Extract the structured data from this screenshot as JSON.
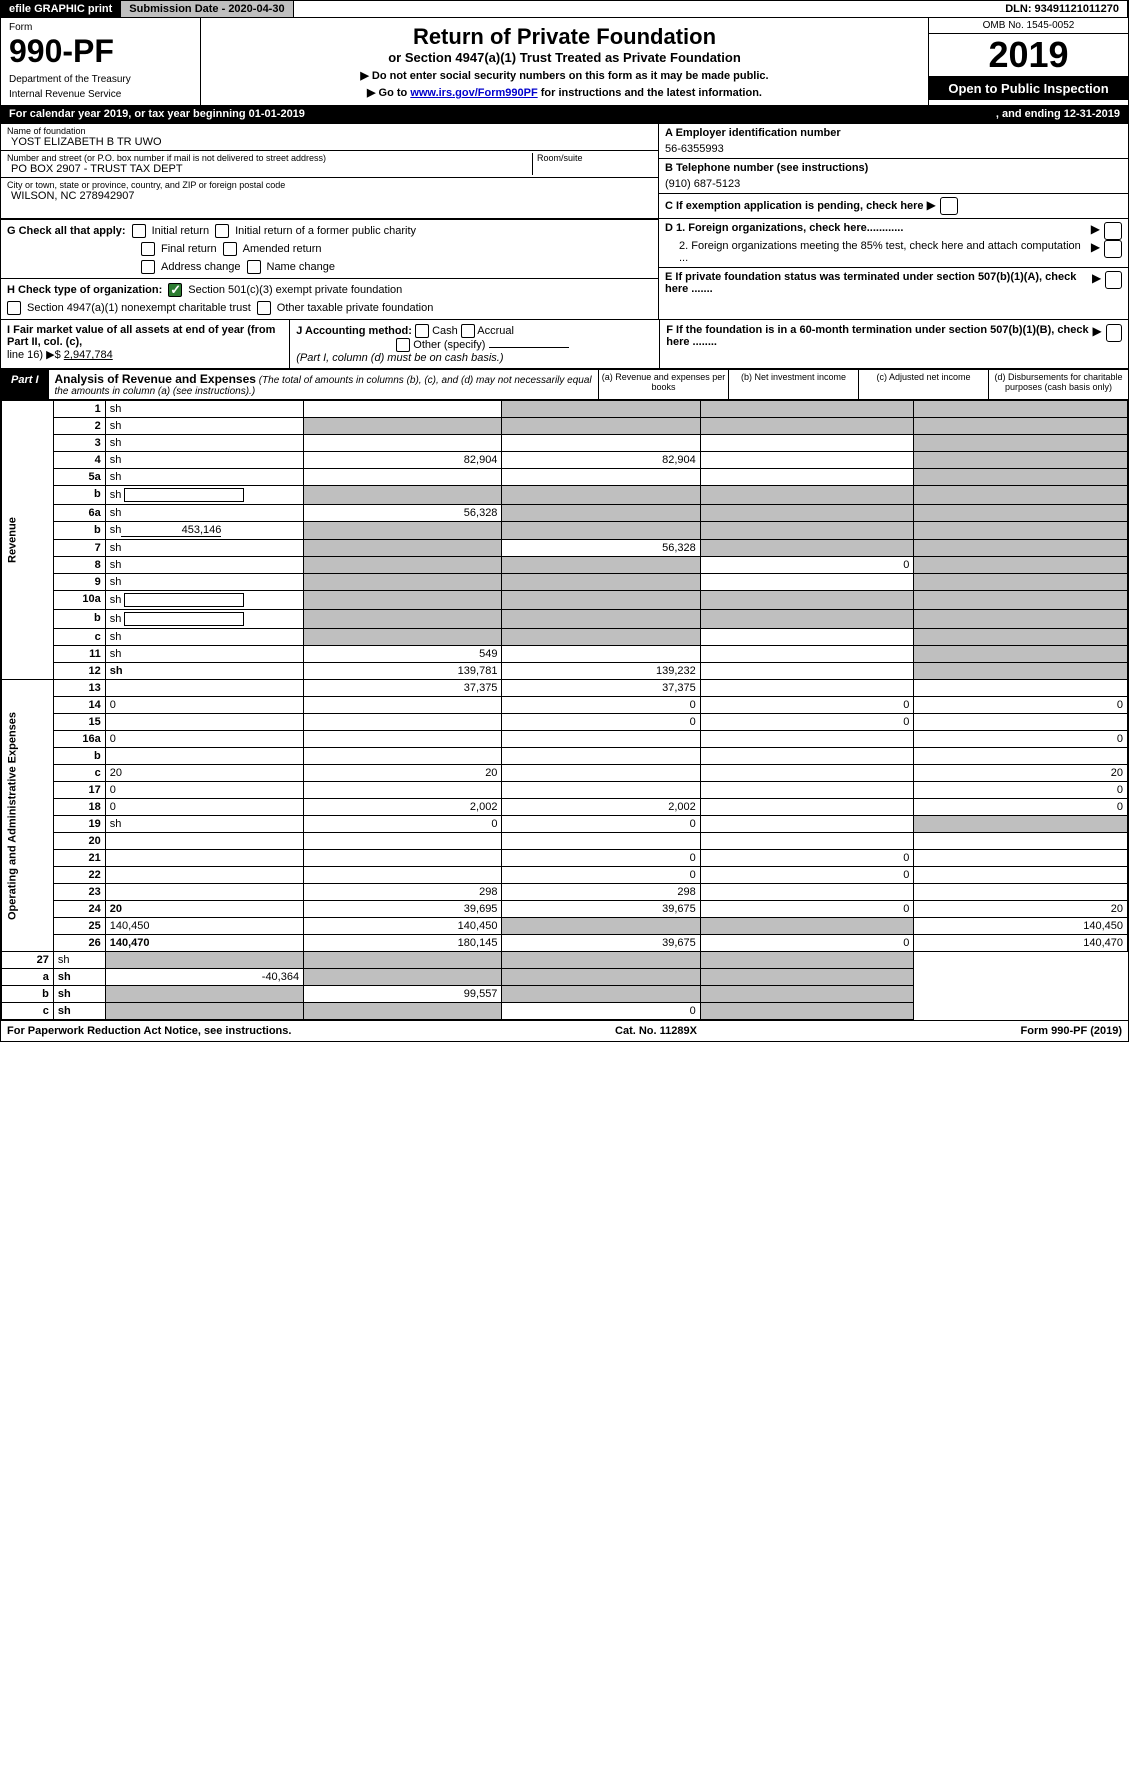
{
  "topbar": {
    "efile": "efile GRAPHIC print",
    "submission": "Submission Date - 2020-04-30",
    "dln": "DLN: 93491121011270"
  },
  "header": {
    "form": "Form",
    "formnum": "990-PF",
    "dept": "Department of the Treasury",
    "irs": "Internal Revenue Service",
    "title": "Return of Private Foundation",
    "subtitle": "or Section 4947(a)(1) Trust Treated as Private Foundation",
    "instr1": "▶ Do not enter social security numbers on this form as it may be made public.",
    "instr2_pre": "▶ Go to ",
    "instr2_link": "www.irs.gov/Form990PF",
    "instr2_post": " for instructions and the latest information.",
    "omb": "OMB No. 1545-0052",
    "year": "2019",
    "open": "Open to Public Inspection"
  },
  "cal": {
    "left": "For calendar year 2019, or tax year beginning 01-01-2019",
    "right": ", and ending 12-31-2019"
  },
  "info": {
    "name_lbl": "Name of foundation",
    "name": "YOST ELIZABETH B TR UWO",
    "addr_lbl": "Number and street (or P.O. box number if mail is not delivered to street address)",
    "addr": "PO BOX 2907 - TRUST TAX DEPT",
    "room_lbl": "Room/suite",
    "city_lbl": "City or town, state or province, country, and ZIP or foreign postal code",
    "city": "WILSON, NC  278942907",
    "a_lbl": "A Employer identification number",
    "a_val": "56-6355993",
    "b_lbl": "B Telephone number (see instructions)",
    "b_val": "(910) 687-5123",
    "c_lbl": "C If exemption application is pending, check here",
    "d1": "D 1. Foreign organizations, check here............",
    "d2": "2. Foreign organizations meeting the 85% test, check here and attach computation ...",
    "e": "E  If private foundation status was terminated under section 507(b)(1)(A), check here .......",
    "f": "F  If the foundation is in a 60-month termination under section 507(b)(1)(B), check here ........"
  },
  "checks": {
    "g_lbl": "G Check all that apply:",
    "g1": "Initial return",
    "g2": "Initial return of a former public charity",
    "g3": "Final return",
    "g4": "Amended return",
    "g5": "Address change",
    "g6": "Name change",
    "h_lbl": "H Check type of organization:",
    "h1": "Section 501(c)(3) exempt private foundation",
    "h2": "Section 4947(a)(1) nonexempt charitable trust",
    "h3": "Other taxable private foundation",
    "i_lbl": "I Fair market value of all assets at end of year (from Part II, col. (c),",
    "i_line": "line 16) ▶$ ",
    "i_val": "2,947,784",
    "j_lbl": "J Accounting method:",
    "j1": "Cash",
    "j2": "Accrual",
    "j3": "Other (specify)",
    "j_note": "(Part I, column (d) must be on cash basis.)"
  },
  "part1": {
    "label": "Part I",
    "title": "Analysis of Revenue and Expenses",
    "note": "(The total of amounts in columns (b), (c), and (d) may not necessarily equal the amounts in column (a) (see instructions).)",
    "col_a": "(a)   Revenue and expenses per books",
    "col_b": "(b)  Net investment income",
    "col_c": "(c)  Adjusted net income",
    "col_d": "(d)  Disbursements for charitable purposes (cash basis only)",
    "side_rev": "Revenue",
    "side_exp": "Operating and Administrative Expenses"
  },
  "rows": [
    {
      "n": "1",
      "d": "sh",
      "a": "",
      "b": "sh",
      "c": "sh"
    },
    {
      "n": "2",
      "d": "sh",
      "a": "sh",
      "b": "sh",
      "c": "sh",
      "bold_not": true
    },
    {
      "n": "3",
      "d": "sh",
      "a": "",
      "b": "",
      "c": ""
    },
    {
      "n": "4",
      "d": "sh",
      "a": "82,904",
      "b": "82,904",
      "c": ""
    },
    {
      "n": "5a",
      "d": "sh",
      "a": "",
      "b": "",
      "c": ""
    },
    {
      "n": "b",
      "d": "sh",
      "a": "sh",
      "b": "sh",
      "c": "sh",
      "box": true
    },
    {
      "n": "6a",
      "d": "sh",
      "a": "56,328",
      "b": "sh",
      "c": "sh"
    },
    {
      "n": "b",
      "d": "sh",
      "a": "sh",
      "b": "sh",
      "c": "sh",
      "inline_val": "453,146"
    },
    {
      "n": "7",
      "d": "sh",
      "a": "sh",
      "b": "56,328",
      "c": "sh"
    },
    {
      "n": "8",
      "d": "sh",
      "a": "sh",
      "b": "sh",
      "c": "0"
    },
    {
      "n": "9",
      "d": "sh",
      "a": "sh",
      "b": "sh",
      "c": ""
    },
    {
      "n": "10a",
      "d": "sh",
      "a": "sh",
      "b": "sh",
      "c": "sh",
      "box": true
    },
    {
      "n": "b",
      "d": "sh",
      "a": "sh",
      "b": "sh",
      "c": "sh",
      "box": true
    },
    {
      "n": "c",
      "d": "sh",
      "a": "sh",
      "b": "sh",
      "c": ""
    },
    {
      "n": "11",
      "d": "sh",
      "a": "549",
      "b": "",
      "c": ""
    },
    {
      "n": "12",
      "d": "sh",
      "a": "139,781",
      "b": "139,232",
      "c": "",
      "bold": true
    }
  ],
  "exp_rows": [
    {
      "n": "13",
      "d": "",
      "a": "37,375",
      "b": "37,375",
      "c": ""
    },
    {
      "n": "14",
      "d": "0",
      "a": "",
      "b": "0",
      "c": "0"
    },
    {
      "n": "15",
      "d": "",
      "a": "",
      "b": "0",
      "c": "0"
    },
    {
      "n": "16a",
      "d": "0",
      "a": "",
      "b": "",
      "c": ""
    },
    {
      "n": "b",
      "d": "",
      "a": "",
      "b": "",
      "c": ""
    },
    {
      "n": "c",
      "d": "20",
      "a": "20",
      "b": "",
      "c": ""
    },
    {
      "n": "17",
      "d": "0",
      "a": "",
      "b": "",
      "c": ""
    },
    {
      "n": "18",
      "d": "0",
      "a": "2,002",
      "b": "2,002",
      "c": ""
    },
    {
      "n": "19",
      "d": "sh",
      "a": "0",
      "b": "0",
      "c": ""
    },
    {
      "n": "20",
      "d": "",
      "a": "",
      "b": "",
      "c": ""
    },
    {
      "n": "21",
      "d": "",
      "a": "",
      "b": "0",
      "c": "0"
    },
    {
      "n": "22",
      "d": "",
      "a": "",
      "b": "0",
      "c": "0"
    },
    {
      "n": "23",
      "d": "",
      "a": "298",
      "b": "298",
      "c": ""
    },
    {
      "n": "24",
      "d": "20",
      "a": "39,695",
      "b": "39,675",
      "c": "0",
      "bold": true
    },
    {
      "n": "25",
      "d": "140,450",
      "a": "140,450",
      "b": "sh",
      "c": "sh"
    },
    {
      "n": "26",
      "d": "140,470",
      "a": "180,145",
      "b": "39,675",
      "c": "0",
      "bold": true
    }
  ],
  "final_rows": [
    {
      "n": "27",
      "d": "sh",
      "a": "sh",
      "b": "sh",
      "c": "sh"
    },
    {
      "n": "a",
      "d": "sh",
      "a": "-40,364",
      "b": "sh",
      "c": "sh",
      "bold": true
    },
    {
      "n": "b",
      "d": "sh",
      "a": "sh",
      "b": "99,557",
      "c": "sh",
      "bold": true
    },
    {
      "n": "c",
      "d": "sh",
      "a": "sh",
      "b": "sh",
      "c": "0",
      "bold": true
    }
  ],
  "footer": {
    "left": "For Paperwork Reduction Act Notice, see instructions.",
    "mid": "Cat. No. 11289X",
    "right": "Form 990-PF (2019)"
  }
}
